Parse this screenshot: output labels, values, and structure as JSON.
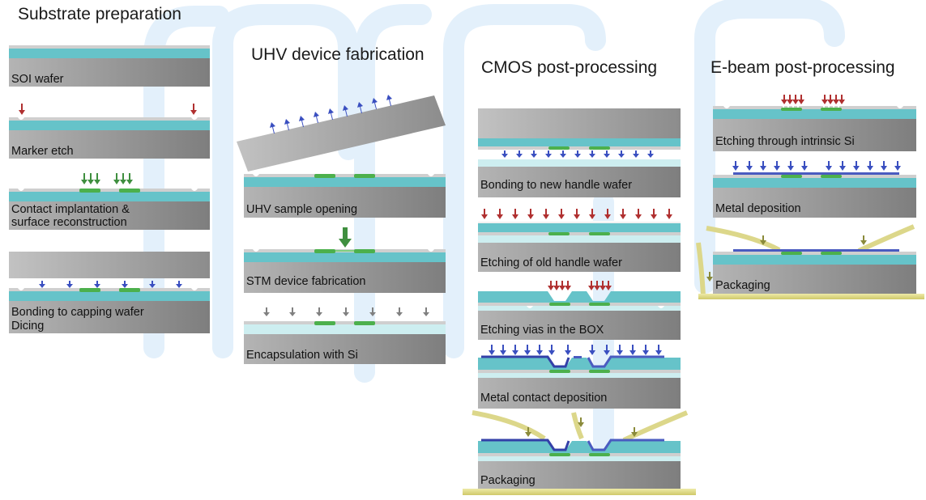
{
  "columns": {
    "substrate": {
      "title": "Substrate preparation",
      "steps": [
        "SOI wafer",
        "Marker etch",
        "Contact implantation &",
        "surface reconstruction",
        "Bonding to capping wafer",
        "Dicing"
      ]
    },
    "uhv": {
      "title": "UHV device fabrication",
      "steps": [
        "UHV sample opening",
        "STM device fabrication",
        "Encapsulation with Si"
      ]
    },
    "cmos": {
      "title": "CMOS post-processing",
      "steps": [
        "Bonding to new handle wafer",
        "Etching of old handle wafer",
        "Etching vias in the BOX",
        "Metal contact deposition",
        "Packaging"
      ]
    },
    "ebeam": {
      "title": "E-beam post-processing",
      "steps": [
        "Etching through intrinsic Si",
        "Metal deposition",
        "Packaging"
      ]
    }
  },
  "colors": {
    "flow_arrow": "#e3f0fb",
    "si_gray": "#9a9a9a",
    "box_cyan": "#66c3c9",
    "thin_cyan": "#cdeef0",
    "green_implant": "#4cb04c",
    "metal_blue": "#4a5bc0",
    "arrow_red": "#b03030",
    "arrow_blue": "#3a4fc0",
    "arrow_green": "#3f8f3f",
    "arrow_gray": "#808080",
    "arrow_olive": "#8a8a3a",
    "package_yellow": "#e0dc8a"
  }
}
